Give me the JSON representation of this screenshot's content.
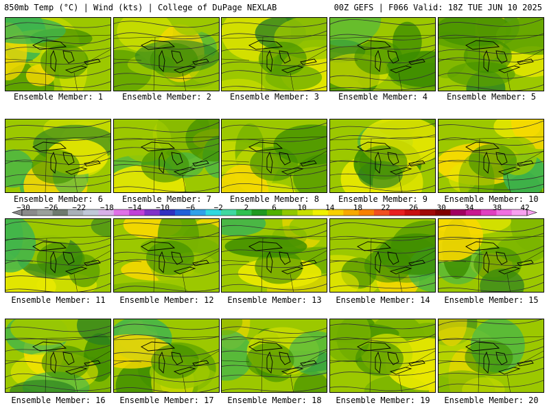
{
  "header": {
    "left": "850mb Temp (°C) | Wind (kts) | College of DuPage NEXLAB",
    "right": "00Z GEFS | F066 Valid: 18Z TUE JUN 10 2025"
  },
  "panels": [
    {
      "label": "Ensemble Member: 1"
    },
    {
      "label": "Ensemble Member: 2"
    },
    {
      "label": "Ensemble Member: 3"
    },
    {
      "label": "Ensemble Member: 4"
    },
    {
      "label": "Ensemble Member: 5"
    },
    {
      "label": "Ensemble Member: 6"
    },
    {
      "label": "Ensemble Member: 7"
    },
    {
      "label": "Ensemble Member: 8"
    },
    {
      "label": "Ensemble Member: 9"
    },
    {
      "label": "Ensemble Member: 10"
    },
    {
      "label": "Ensemble Member: 11"
    },
    {
      "label": "Ensemble Member: 12"
    },
    {
      "label": "Ensemble Member: 13"
    },
    {
      "label": "Ensemble Member: 14"
    },
    {
      "label": "Ensemble Member: 15"
    },
    {
      "label": "Ensemble Member: 16"
    },
    {
      "label": "Ensemble Member: 17"
    },
    {
      "label": "Ensemble Member: 18"
    },
    {
      "label": "Ensemble Member: 19"
    },
    {
      "label": "Ensemble Member: 20"
    }
  ],
  "colorbar": {
    "labels": [
      "−30",
      "−26",
      "−22",
      "−18",
      "−14",
      "−10",
      "−6",
      "−2",
      "2",
      "6",
      "10",
      "14",
      "18",
      "22",
      "26",
      "30",
      "34",
      "38",
      "42"
    ],
    "colors": [
      "#8a8a8a",
      "#9aa09a",
      "#6e7a6e",
      "#a8b0b8",
      "#c0c8d8",
      "#d8b0e8",
      "#e070e8",
      "#c040d8",
      "#8030c8",
      "#3030c0",
      "#2060d8",
      "#30a0e8",
      "#30d8e0",
      "#40d8a0",
      "#30c050",
      "#209820",
      "#50b000",
      "#90c800",
      "#c8e000",
      "#f0f000",
      "#f8d000",
      "#f8a800",
      "#f88000",
      "#f05020",
      "#e82020",
      "#c81010",
      "#a00808",
      "#800000",
      "#a00060",
      "#c81890",
      "#e040c0",
      "#f070e0",
      "#f8a0f0"
    ]
  },
  "map": {
    "fill_greens": [
      "#9cc800",
      "#7ab400",
      "#5aa000",
      "#3c8c00",
      "#2a8020",
      "#3cb450",
      "#c8dc00",
      "#e8e800",
      "#f8d800"
    ]
  }
}
